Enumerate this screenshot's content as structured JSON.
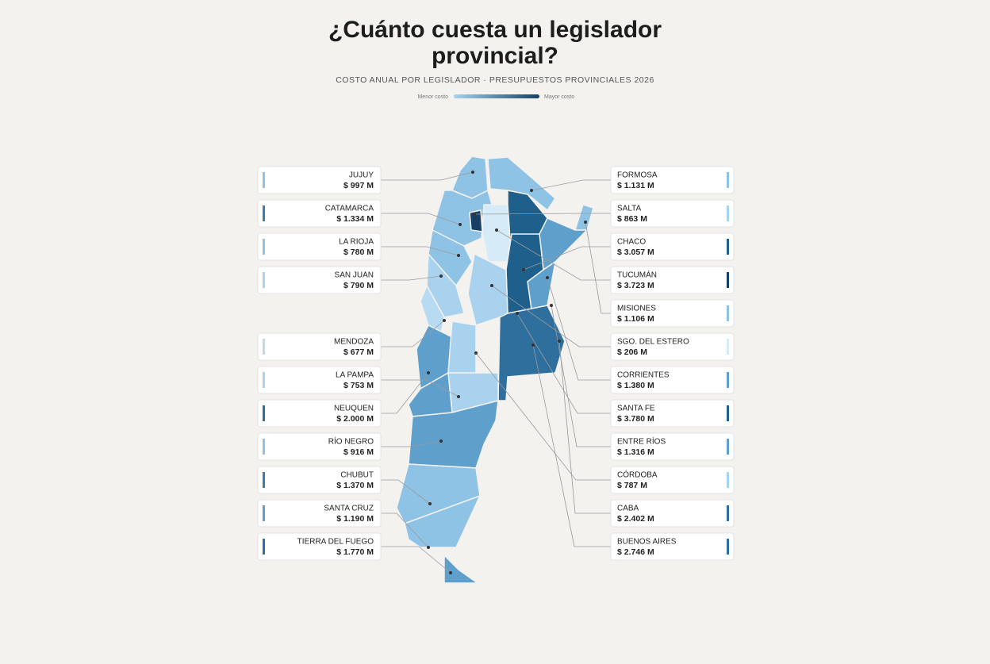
{
  "header": {
    "title": "¿Cuánto cuesta un legislador provincial?",
    "subtitle": "COSTO ANUAL POR LEGISLADOR · PRESUPUESTOS PROVINCIALES 2026",
    "legend": {
      "low": "Menor costo",
      "high": "Mayor costo"
    }
  },
  "left": [
    {
      "name": "JUJUY",
      "value": "$ 997 M",
      "color": "#8fc3e6"
    },
    {
      "name": "CATAMARCA",
      "value": "$ 1.334 M",
      "color": "#3b7ea9"
    },
    {
      "name": "LA RIOJA",
      "value": "$ 780 M",
      "color": "#8fc3e6"
    },
    {
      "name": "SAN JUAN",
      "value": "$ 790 M",
      "color": "#a9d2ee"
    },
    {
      "name": "MENDOZA",
      "value": "$ 677 M",
      "color": "#b9dbf2"
    },
    {
      "name": "LA PAMPA",
      "value": "$ 753 M",
      "color": "#a9d2ee"
    },
    {
      "name": "NEUQUEN",
      "value": "$ 2.000 M",
      "color": "#2e6f9e"
    },
    {
      "name": "RÍO NEGRO",
      "value": "$ 916 M",
      "color": "#8fc3e6"
    },
    {
      "name": "CHUBUT",
      "value": "$ 1.370 M",
      "color": "#3b7ea9"
    },
    {
      "name": "SANTA CRUZ",
      "value": "$ 1.190 M",
      "color": "#5f9fcc"
    },
    {
      "name": "TIERRA DEL FUEGO",
      "value": "$ 1.770 M",
      "color": "#2e6f9e"
    }
  ],
  "right": [
    {
      "name": "FORMOSA",
      "value": "$ 1.131 M",
      "color": "#8fc3e6"
    },
    {
      "name": "SALTA",
      "value": "$ 863 M",
      "color": "#a9d2ee"
    },
    {
      "name": "CHACO",
      "value": "$ 3.057 M",
      "color": "#1f5f8b"
    },
    {
      "name": "TUCUMÁN",
      "value": "$ 3.723 M",
      "color": "#163f63"
    },
    {
      "name": "MISIONES",
      "value": "$ 1.106 M",
      "color": "#8fc3e6"
    },
    {
      "name": "SGO. DEL ESTERO",
      "value": "$ 206 M",
      "color": "#d6ebf8"
    },
    {
      "name": "CORRIENTES",
      "value": "$ 1.380 M",
      "color": "#5f9fcc"
    },
    {
      "name": "SANTA FE",
      "value": "$ 3.780 M",
      "color": "#1f5f8b"
    },
    {
      "name": "ENTRE RÍOS",
      "value": "$ 1.316 M",
      "color": "#5f9fcc"
    },
    {
      "name": "CÓRDOBA",
      "value": "$ 787 M",
      "color": "#a9d2ee"
    },
    {
      "name": "CABA",
      "value": "$ 2.402 M",
      "color": "#2e6f9e"
    },
    {
      "name": "BUENOS AIRES",
      "value": "$ 2.746 M",
      "color": "#2e6f9e"
    }
  ]
}
